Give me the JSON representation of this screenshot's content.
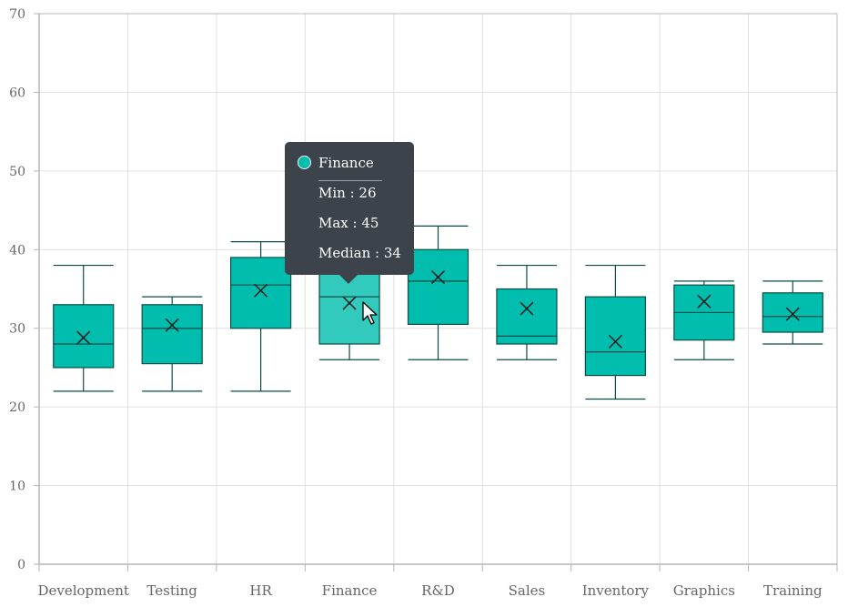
{
  "chart_data": {
    "type": "boxplot",
    "categories": [
      "Development",
      "Testing",
      "HR",
      "Finance",
      "R&D",
      "Sales",
      "Inventory",
      "Graphics",
      "Training"
    ],
    "series": [
      {
        "boxes": [
          {
            "min": 22,
            "q1": 25,
            "median": 28,
            "q3": 33,
            "max": 38,
            "mean": 28.8
          },
          {
            "min": 22,
            "q1": 25.5,
            "median": 30,
            "q3": 33,
            "max": 34,
            "mean": 30.4
          },
          {
            "min": 22,
            "q1": 30,
            "median": 35.5,
            "q3": 39,
            "max": 41,
            "mean": 34.8
          },
          {
            "min": 26,
            "q1": 28,
            "median": 34,
            "q3": 40,
            "max": 45,
            "mean": 33.2
          },
          {
            "min": 26,
            "q1": 30.5,
            "median": 36,
            "q3": 40,
            "max": 43,
            "mean": 36.5
          },
          {
            "min": 26,
            "q1": 28,
            "median": 29,
            "q3": 35,
            "max": 38,
            "mean": 32.5
          },
          {
            "min": 21,
            "q1": 24,
            "median": 27,
            "q3": 34,
            "max": 38,
            "mean": 28.3
          },
          {
            "min": 26,
            "q1": 28.5,
            "median": 32,
            "q3": 35.5,
            "max": 36,
            "mean": 33.4
          },
          {
            "min": 28,
            "q1": 29.5,
            "median": 31.5,
            "q3": 34.5,
            "max": 36,
            "mean": 31.8
          }
        ]
      }
    ],
    "ylim": [
      0,
      70
    ],
    "y_ticks": [
      "0",
      "10",
      "20",
      "30",
      "40",
      "50",
      "60",
      "70"
    ],
    "grid": true,
    "colors": {
      "box_fill": "#00bdae",
      "box_fill_hover": "#33cabe",
      "box_stroke": "#0a4d46",
      "grid": "#e0e0e0",
      "axis": "#b5b5b5"
    },
    "highlighted_category": "Finance"
  },
  "tooltip": {
    "title": "Finance",
    "min": "Min : 26",
    "max": "Max : 45",
    "median": "Median : 34"
  }
}
